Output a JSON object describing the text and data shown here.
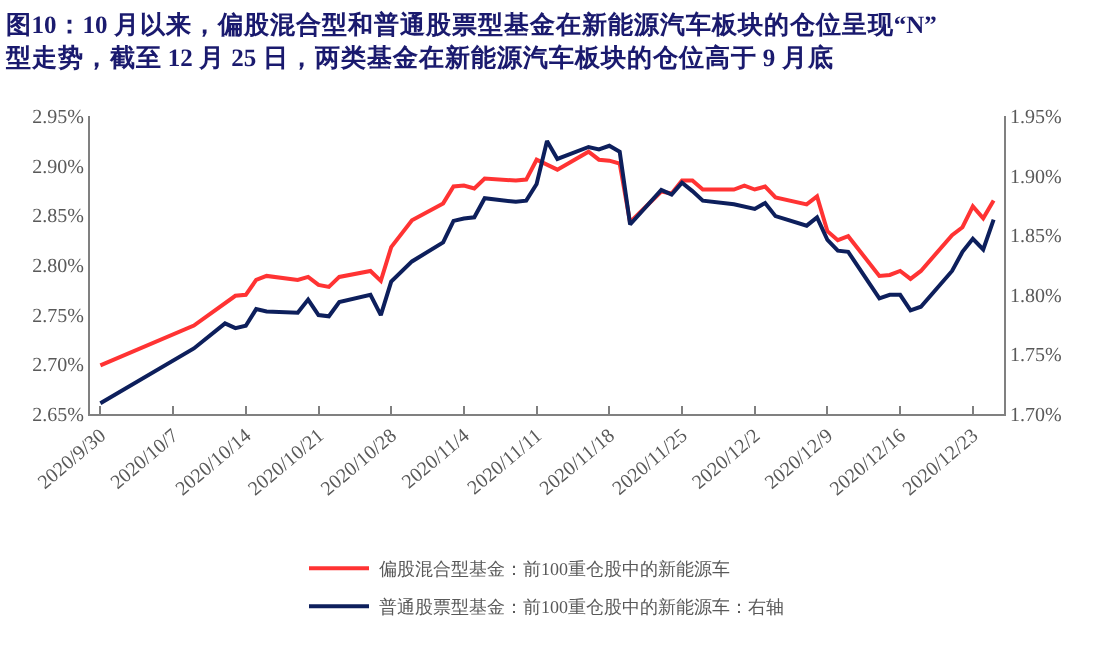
{
  "chart_data": {
    "type": "line",
    "title": "图10：10 月以来，偏股混合型和普通股票型基金在新能源汽车板块的仓位呈现“N”\n型走势，截至 12 月 25 日，两类基金在新能源汽车板块的仓位高于 9 月底",
    "series": [
      {
        "name": "偏股混合型基金：前100重仓股中的新能源车",
        "color": "#ff3333",
        "x": [
          "2020-09-30",
          "2020-10-09",
          "2020-10-13",
          "2020-10-14",
          "2020-10-15",
          "2020-10-16",
          "2020-10-19",
          "2020-10-20",
          "2020-10-21",
          "2020-10-22",
          "2020-10-23",
          "2020-10-26",
          "2020-10-27",
          "2020-10-28",
          "2020-10-30",
          "2020-11-02",
          "2020-11-03",
          "2020-11-04",
          "2020-11-05",
          "2020-11-06",
          "2020-11-09",
          "2020-11-10",
          "2020-11-11",
          "2020-11-13",
          "2020-11-16",
          "2020-11-17",
          "2020-11-18",
          "2020-11-19",
          "2020-11-20",
          "2020-11-23",
          "2020-11-24",
          "2020-11-25",
          "2020-11-26",
          "2020-11-27",
          "2020-11-30",
          "2020-12-01",
          "2020-12-02",
          "2020-12-03",
          "2020-12-04",
          "2020-12-07",
          "2020-12-08",
          "2020-12-09",
          "2020-12-10",
          "2020-12-11",
          "2020-12-14",
          "2020-12-15",
          "2020-12-16",
          "2020-12-17",
          "2020-12-18",
          "2020-12-21",
          "2020-12-22",
          "2020-12-23",
          "2020-12-24",
          "2020-12-25"
        ],
        "values": [
          2.699,
          2.739,
          2.769,
          2.77,
          2.785,
          2.789,
          2.785,
          2.788,
          2.78,
          2.778,
          2.788,
          2.794,
          2.784,
          2.818,
          2.845,
          2.862,
          2.879,
          2.88,
          2.877,
          2.887,
          2.885,
          2.886,
          2.906,
          2.896,
          2.914,
          2.906,
          2.905,
          2.902,
          2.843,
          2.874,
          2.872,
          2.885,
          2.885,
          2.876,
          2.876,
          2.88,
          2.876,
          2.879,
          2.868,
          2.861,
          2.869,
          2.834,
          2.825,
          2.829,
          2.789,
          2.79,
          2.794,
          2.786,
          2.794,
          2.83,
          2.838,
          2.859,
          2.847,
          2.865
        ]
      },
      {
        "name": "普通股票型基金：前100重仓股中的新能源车：右轴",
        "color": "#0d1f5c",
        "axis": "y2",
        "x": [
          "2020-09-30",
          "2020-10-09",
          "2020-10-12",
          "2020-10-13",
          "2020-10-14",
          "2020-10-15",
          "2020-10-16",
          "2020-10-19",
          "2020-10-20",
          "2020-10-21",
          "2020-10-22",
          "2020-10-23",
          "2020-10-26",
          "2020-10-27",
          "2020-10-28",
          "2020-10-30",
          "2020-11-02",
          "2020-11-03",
          "2020-11-04",
          "2020-11-05",
          "2020-11-06",
          "2020-11-09",
          "2020-11-10",
          "2020-11-11",
          "2020-11-12",
          "2020-11-13",
          "2020-11-16",
          "2020-11-17",
          "2020-11-18",
          "2020-11-19",
          "2020-11-20",
          "2020-11-23",
          "2020-11-24",
          "2020-11-25",
          "2020-11-26",
          "2020-11-27",
          "2020-11-30",
          "2020-12-02",
          "2020-12-03",
          "2020-12-04",
          "2020-12-07",
          "2020-12-08",
          "2020-12-09",
          "2020-12-10",
          "2020-12-11",
          "2020-12-14",
          "2020-12-15",
          "2020-12-16",
          "2020-12-17",
          "2020-12-18",
          "2020-12-21",
          "2020-12-22",
          "2020-12-23",
          "2020-12-24",
          "2020-12-25"
        ],
        "values": [
          1.709,
          1.755,
          1.776,
          1.772,
          1.774,
          1.788,
          1.786,
          1.785,
          1.796,
          1.783,
          1.782,
          1.794,
          1.8,
          1.783,
          1.811,
          1.828,
          1.844,
          1.862,
          1.864,
          1.865,
          1.881,
          1.878,
          1.879,
          1.893,
          1.929,
          1.914,
          1.924,
          1.922,
          1.925,
          1.92,
          1.859,
          1.888,
          1.884,
          1.894,
          1.887,
          1.879,
          1.876,
          1.872,
          1.877,
          1.866,
          1.858,
          1.865,
          1.846,
          1.837,
          1.836,
          1.797,
          1.8,
          1.8,
          1.787,
          1.79,
          1.82,
          1.836,
          1.847,
          1.838,
          1.863
        ]
      }
    ],
    "xlim": [
      "2020-09-29",
      "2020-12-26"
    ],
    "xticks": [
      {
        "value": "2020-09-30",
        "label": "2020/9/30"
      },
      {
        "value": "2020-10-07",
        "label": "2020/10/7"
      },
      {
        "value": "2020-10-14",
        "label": "2020/10/14"
      },
      {
        "value": "2020-10-21",
        "label": "2020/10/21"
      },
      {
        "value": "2020-10-28",
        "label": "2020/10/28"
      },
      {
        "value": "2020-11-04",
        "label": "2020/11/4"
      },
      {
        "value": "2020-11-11",
        "label": "2020/11/11"
      },
      {
        "value": "2020-11-18",
        "label": "2020/11/18"
      },
      {
        "value": "2020-11-25",
        "label": "2020/11/25"
      },
      {
        "value": "2020-12-02",
        "label": "2020/12/2"
      },
      {
        "value": "2020-12-09",
        "label": "2020/12/9"
      },
      {
        "value": "2020-12-16",
        "label": "2020/12/16"
      },
      {
        "value": "2020-12-23",
        "label": "2020/12/23"
      }
    ],
    "ylim": [
      2.65,
      2.95
    ],
    "yticks": [
      {
        "value": 2.65,
        "label": "2.65%"
      },
      {
        "value": 2.7,
        "label": "2.70%"
      },
      {
        "value": 2.75,
        "label": "2.75%"
      },
      {
        "value": 2.8,
        "label": "2.80%"
      },
      {
        "value": 2.85,
        "label": "2.85%"
      },
      {
        "value": 2.9,
        "label": "2.90%"
      },
      {
        "value": 2.95,
        "label": "2.95%"
      }
    ],
    "y2lim": [
      1.7,
      1.95
    ],
    "y2ticks": [
      {
        "value": 1.7,
        "label": "1.70%"
      },
      {
        "value": 1.75,
        "label": "1.75%"
      },
      {
        "value": 1.8,
        "label": "1.80%"
      },
      {
        "value": 1.85,
        "label": "1.85%"
      },
      {
        "value": 1.9,
        "label": "1.90%"
      },
      {
        "value": 1.95,
        "label": "1.95%"
      }
    ],
    "legend": "bottom"
  }
}
